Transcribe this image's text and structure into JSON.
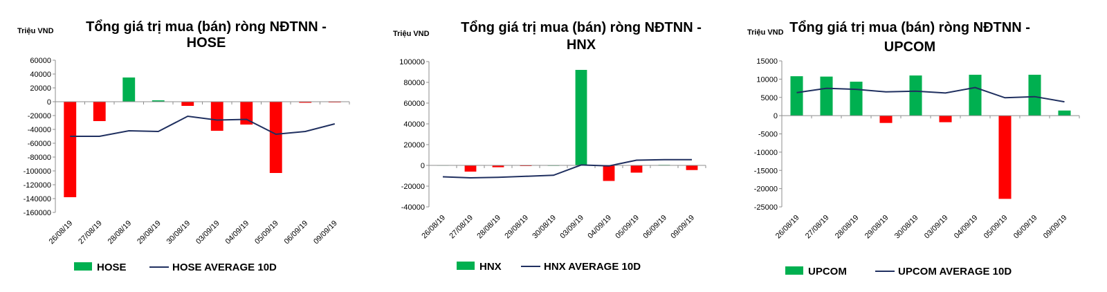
{
  "colors": {
    "bar_positive": "#00B050",
    "bar_negative": "#FF0000",
    "average_line": "#1F2F5F",
    "axis": "#8C8C8C"
  },
  "chart_data": [
    {
      "type": "bar",
      "title_lines": [
        "Tổng giá trị mua (bán) ròng NĐTNN -",
        "HOSE"
      ],
      "unit_label": "Triệu VND",
      "categories": [
        "26/08/19",
        "27/08/19",
        "28/08/19",
        "29/08/19",
        "30/08/19",
        "03/09/19",
        "04/09/19",
        "05/09/19",
        "06/09/19",
        "09/09/19"
      ],
      "series": [
        {
          "name": "HOSE",
          "kind": "bar",
          "values": [
            -138000,
            -28000,
            35000,
            2000,
            -6000,
            -42000,
            -33000,
            -103000,
            -1500,
            -800
          ]
        },
        {
          "name": "HOSE AVERAGE 10D",
          "kind": "line",
          "values": [
            -50000,
            -50000,
            -42000,
            -43000,
            -21000,
            -26500,
            -25500,
            -47000,
            -43000,
            -32000
          ]
        }
      ],
      "ylim": [
        -160000,
        60000
      ],
      "yticks": [
        60000,
        40000,
        20000,
        0,
        -20000,
        -40000,
        -60000,
        -80000,
        -100000,
        -120000,
        -140000,
        -160000
      ],
      "legend": "bottom"
    },
    {
      "type": "bar",
      "title_lines": [
        "Tổng giá trị mua (bán) ròng NĐTNN -",
        "HNX"
      ],
      "unit_label": "Triệu VND",
      "categories": [
        "26/08/19",
        "27/08/19",
        "28/08/19",
        "29/08/19",
        "30/08/19",
        "03/09/19",
        "04/09/19",
        "05/09/19",
        "06/09/19",
        "09/09/19"
      ],
      "series": [
        {
          "name": "HNX",
          "kind": "bar",
          "values": [
            300,
            -6000,
            -1800,
            -500,
            200,
            92000,
            -15000,
            -7000,
            500,
            -4500
          ]
        },
        {
          "name": "HNX AVERAGE 10D",
          "kind": "line",
          "values": [
            -11000,
            -12000,
            -11500,
            -10500,
            -9500,
            400,
            -500,
            5000,
            5500,
            5500
          ]
        }
      ],
      "ylim": [
        -40000,
        100000
      ],
      "yticks": [
        100000,
        80000,
        60000,
        40000,
        20000,
        0,
        -20000,
        -40000
      ],
      "legend": "bottom"
    },
    {
      "type": "bar",
      "title_lines": [
        "Tổng giá trị mua (bán) ròng NĐTNN -",
        "UPCOM"
      ],
      "unit_label": "Triệu VND",
      "categories": [
        "26/08/19",
        "27/08/19",
        "28/08/19",
        "29/08/19",
        "30/08/19",
        "03/09/19",
        "04/09/19",
        "05/09/19",
        "06/09/19",
        "09/09/19"
      ],
      "series": [
        {
          "name": "UPCOM",
          "kind": "bar",
          "values": [
            10800,
            10700,
            9300,
            -2000,
            11000,
            -1800,
            11200,
            -22800,
            11200,
            1400
          ]
        },
        {
          "name": "UPCOM AVERAGE 10D",
          "kind": "line",
          "values": [
            6300,
            7500,
            7200,
            6500,
            6700,
            6200,
            7700,
            4900,
            5200,
            3800
          ]
        }
      ],
      "ylim": [
        -25000,
        15000
      ],
      "yticks": [
        15000,
        10000,
        5000,
        0,
        -5000,
        -10000,
        -15000,
        -20000,
        -25000
      ],
      "legend": "bottom"
    }
  ]
}
